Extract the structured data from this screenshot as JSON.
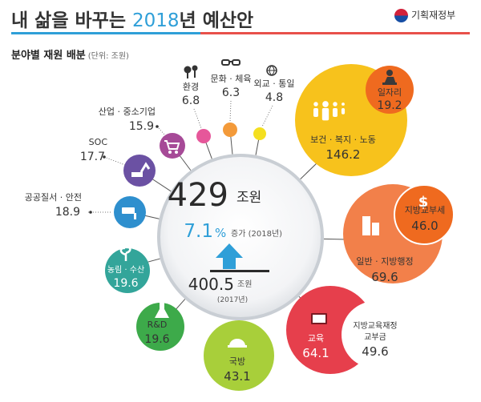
{
  "header": {
    "title_pre": "내 삶을 바꾸는 ",
    "title_year": "2018",
    "title_post": "년 예산안",
    "logo_text": "기획재정부",
    "subtitle": "분야별 재원 배분",
    "unit": "(단위: 조원)",
    "colors": {
      "blue": "#2f9fd8",
      "red": "#e8504a"
    }
  },
  "center": {
    "total_value": "429",
    "total_unit": "조원",
    "growth_value": "7.1",
    "growth_pct": "%",
    "growth_label": "증가 (2018년)",
    "prev_value": "400.5",
    "prev_unit": "조원",
    "prev_year": "(2017년)"
  },
  "chart_data": {
    "type": "bubble",
    "title": "분야별 재원 배분",
    "unit": "조원",
    "total_2018": 429,
    "total_2017": 400.5,
    "growth_percent": 7.1,
    "categories": [
      {
        "label": "보건 · 복지 · 노동",
        "value": "146.2",
        "color": "#f7c21c",
        "icon": "family-icon"
      },
      {
        "label": "일자리",
        "value": "19.2",
        "color": "#ef6a1f",
        "icon": "worker-icon",
        "part_of": "보건 · 복지 · 노동"
      },
      {
        "label": "일반 · 지방행정",
        "value": "69.6",
        "color": "#f2804a",
        "icon": "building-icon"
      },
      {
        "label": "지방교부세",
        "value": "46.0",
        "color": "#ef6a1f",
        "icon": "dollar-icon",
        "part_of": "일반 · 지방행정"
      },
      {
        "label": "교육",
        "value": "64.1",
        "color": "#e63f4c",
        "icon": "book-icon"
      },
      {
        "label": "지방교육재정 교부금",
        "value": "49.6",
        "color": "#e63f4c",
        "icon": "",
        "part_of": "교육"
      },
      {
        "label": "국방",
        "value": "43.1",
        "color": "#a8cf3a",
        "icon": "helmet-icon"
      },
      {
        "label": "R&D",
        "value": "19.6",
        "color": "#3daa4a",
        "icon": "flask-icon"
      },
      {
        "label": "농림 · 수산",
        "value": "19.6",
        "color": "#33a59a",
        "icon": "plant-icon"
      },
      {
        "label": "공공질서 · 안전",
        "value": "18.9",
        "color": "#2e8fce",
        "icon": "cctv-icon"
      },
      {
        "label": "SOC",
        "value": "17.7",
        "color": "#6b51a3",
        "icon": "excavator-icon"
      },
      {
        "label": "산업 · 중소기업",
        "value": "15.9",
        "color": "#a64a97",
        "icon": "cart-icon"
      },
      {
        "label": "환경",
        "value": "6.8",
        "color": "#e6579a",
        "icon": "tree-icon"
      },
      {
        "label": "문화 · 체육",
        "value": "6.3",
        "color": "#f39a3a",
        "icon": "glasses-icon"
      },
      {
        "label": "외교 · 통일",
        "value": "4.8",
        "color": "#f4df20",
        "icon": "globe-icon"
      }
    ]
  }
}
